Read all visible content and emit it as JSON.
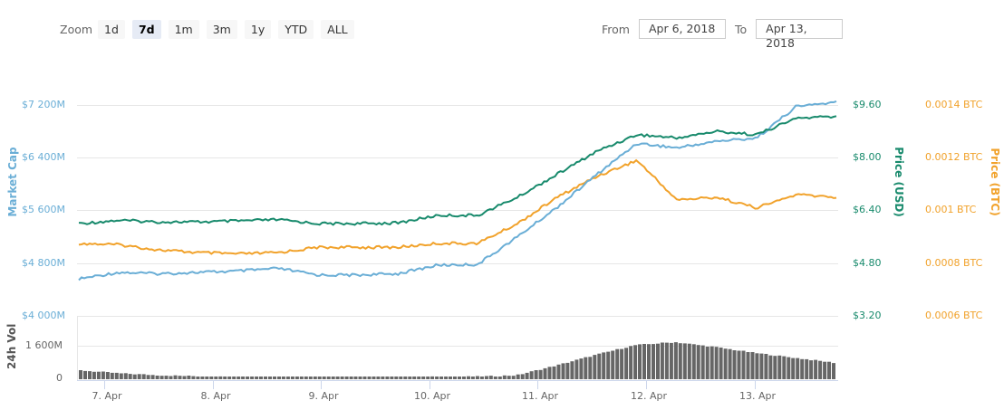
{
  "toolbar": {
    "zoom_label": "Zoom",
    "buttons": [
      {
        "label": "1d",
        "active": false
      },
      {
        "label": "7d",
        "active": true
      },
      {
        "label": "1m",
        "active": false
      },
      {
        "label": "3m",
        "active": false
      },
      {
        "label": "1y",
        "active": false
      },
      {
        "label": "YTD",
        "active": false
      },
      {
        "label": "ALL",
        "active": false
      }
    ],
    "from_label": "From",
    "from_value": "Apr 6, 2018",
    "to_label": "To",
    "to_value": "Apr 13, 2018"
  },
  "axes": {
    "market_cap_title": "Market Cap",
    "price_usd_title": "Price (USD)",
    "price_btc_title": "Price (BTC)",
    "volume_title": "24h Vol",
    "market_cap_ticks": [
      "$7 200M",
      "$6 400M",
      "$5 600M",
      "$4 800M",
      "$4 000M"
    ],
    "price_usd_ticks": [
      "$9.60",
      "$8.00",
      "$6.40",
      "$4.80",
      "$3.20"
    ],
    "price_btc_ticks": [
      "0.0014 BTC",
      "0.0012 BTC",
      "0.001 BTC",
      "0.0008 BTC",
      "0.0006 BTC"
    ],
    "volume_ticks": [
      "1 600M",
      "0"
    ],
    "x_ticks": [
      "7. Apr",
      "8. Apr",
      "9. Apr",
      "10. Apr",
      "11. Apr",
      "12. Apr",
      "13. Apr"
    ]
  },
  "colors": {
    "market_cap": "#6aaed6",
    "price_usd": "#188a6c",
    "price_btc": "#f1a22b",
    "volume": "#666666",
    "grid": "#e6e6e6"
  },
  "chart_data": {
    "type": "line",
    "title": "",
    "x": [
      "Apr 6 18:00",
      "Apr 7",
      "Apr 7 12:00",
      "Apr 8",
      "Apr 8 12:00",
      "Apr 9",
      "Apr 9 12:00",
      "Apr 10",
      "Apr 10 12:00",
      "Apr 11",
      "Apr 11 12:00",
      "Apr 11 18:00",
      "Apr 12",
      "Apr 12 06:00",
      "Apr 12 12:00",
      "Apr 12 18:00",
      "Apr 13",
      "Apr 13 06:00",
      "Apr 13 12:00",
      "Apr 13 18:00"
    ],
    "series": [
      {
        "name": "Market Cap",
        "axis": "left",
        "unit": "USD M",
        "values": [
          4560,
          4660,
          4640,
          4660,
          4680,
          4720,
          4620,
          4620,
          4640,
          4770,
          4780,
          5200,
          5650,
          6150,
          6620,
          6550,
          6650,
          6700,
          7180,
          7240
        ]
      },
      {
        "name": "Price (USD)",
        "axis": "right",
        "unit": "USD",
        "values": [
          6.0,
          6.1,
          6.05,
          6.05,
          6.08,
          6.12,
          6.0,
          6.0,
          6.02,
          6.25,
          6.25,
          6.8,
          7.5,
          8.2,
          8.7,
          8.6,
          8.8,
          8.7,
          9.2,
          9.25
        ]
      },
      {
        "name": "Price (BTC)",
        "axis": "right",
        "unit": "BTC",
        "values": [
          0.000875,
          0.00087,
          0.00085,
          0.00084,
          0.000835,
          0.00084,
          0.00086,
          0.00086,
          0.00086,
          0.000875,
          0.000875,
          0.00095,
          0.00105,
          0.00113,
          0.00119,
          0.00104,
          0.00105,
          0.00101,
          0.00106,
          0.00105
        ]
      },
      {
        "name": "24h Vol",
        "axis": "volume",
        "unit": "USD M",
        "values": [
          450,
          300,
          200,
          150,
          100,
          95,
          90,
          100,
          110,
          120,
          130,
          200,
          700,
          1250,
          1750,
          1900,
          1650,
          1350,
          1100,
          850
        ]
      }
    ],
    "xlabel": "",
    "ylabel_left": "Market Cap",
    "ylabel_right": [
      "Price (USD)",
      "Price (BTC)"
    ],
    "ylim_market_cap": [
      4000,
      7200
    ],
    "ylim_price_usd": [
      3.2,
      9.6
    ],
    "ylim_price_btc": [
      0.0006,
      0.0014
    ],
    "ylim_volume": [
      0,
      3200
    ],
    "grid": true,
    "legend": "none"
  }
}
